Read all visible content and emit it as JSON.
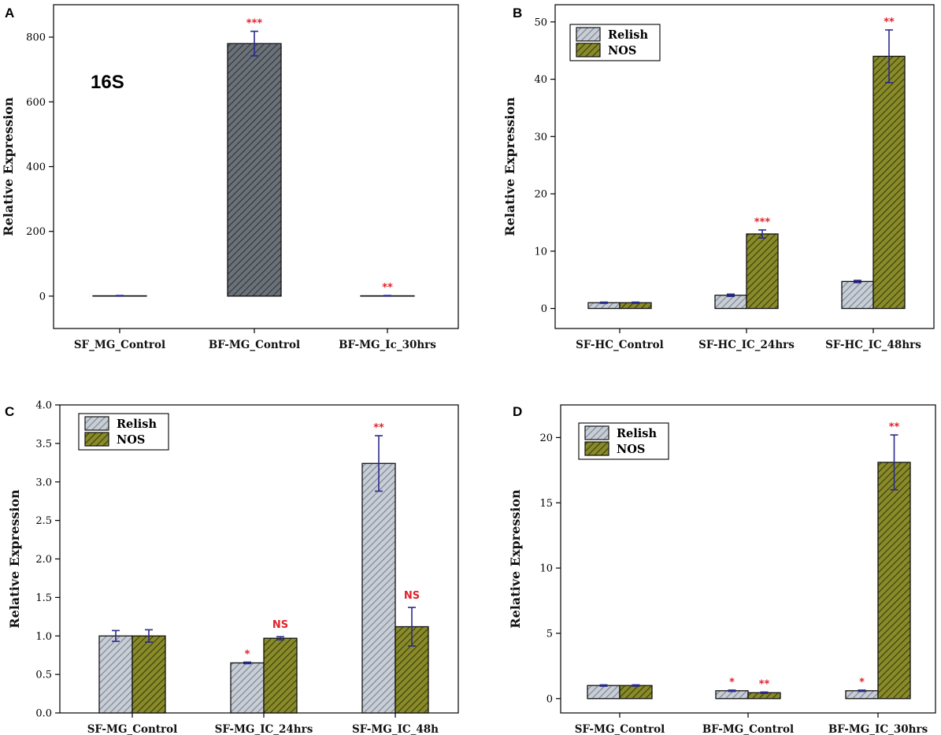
{
  "colors": {
    "relish": "#c9ced6",
    "relish_hatch": "#7d8794",
    "nos": "#898b2a",
    "nos_hatch": "#3f410a",
    "single": "#6b7178",
    "single_hatch": "#2f3338",
    "error_bar": "#2a2a8c",
    "significance": "#e0232c"
  },
  "chart_data": [
    {
      "panel": "A",
      "type": "bar",
      "title": "",
      "annotation": "16S",
      "ylabel": "Relative Expression",
      "xlabel": "",
      "ylim": [
        -100,
        900
      ],
      "yticks": [
        0,
        200,
        400,
        600,
        800
      ],
      "ytick_labels": [
        "0",
        "200",
        "400",
        "600",
        "800"
      ],
      "legend": "none",
      "categories": [
        "SF_MG_Control",
        "BF-MG_Control",
        "BF-MG_Ic_30hrs"
      ],
      "series": [
        {
          "name": "16S",
          "style": "single",
          "values": [
            1,
            780,
            1
          ],
          "errors": [
            1,
            38,
            1
          ],
          "significance": [
            "",
            "***",
            "**"
          ]
        }
      ]
    },
    {
      "panel": "B",
      "type": "bar",
      "title": "",
      "ylabel": "Relative Expression",
      "xlabel": "",
      "ylim": [
        -3.5,
        53
      ],
      "yticks": [
        0,
        10,
        20,
        30,
        40,
        50
      ],
      "ytick_labels": [
        "0",
        "10",
        "20",
        "30",
        "40",
        "50"
      ],
      "legend": "top-left",
      "categories": [
        "SF-HC_Control",
        "SF-HC_IC_24hrs",
        "SF-HC_IC_48hrs"
      ],
      "series": [
        {
          "name": "Relish",
          "style": "relish",
          "values": [
            1,
            2.3,
            4.7
          ],
          "errors": [
            0.1,
            0.2,
            0.2
          ],
          "significance": [
            "",
            "",
            ""
          ]
        },
        {
          "name": "NOS",
          "style": "nos",
          "values": [
            1,
            13,
            44
          ],
          "errors": [
            0.1,
            0.7,
            4.6
          ],
          "significance": [
            "",
            "***",
            "**"
          ]
        }
      ]
    },
    {
      "panel": "C",
      "type": "bar",
      "title": "",
      "ylabel": "Relative Expression",
      "xlabel": "",
      "ylim": [
        0,
        4.0
      ],
      "yticks": [
        0,
        0.5,
        1,
        1.5,
        2,
        2.5,
        3,
        3.5,
        4
      ],
      "ytick_labels": [
        "0.0",
        "0.5",
        "1.0",
        "1.5",
        "2.0",
        "2.5",
        "3.0",
        "3.5",
        "4.0"
      ],
      "legend": "top-left",
      "categories": [
        "SF-MG_Control",
        "SF-MG_IC_24hrs",
        "SF-MG_IC_48h"
      ],
      "series": [
        {
          "name": "Relish",
          "style": "relish",
          "values": [
            1.0,
            0.65,
            3.24
          ],
          "errors": [
            0.07,
            0.01,
            0.36
          ],
          "significance": [
            "",
            "*",
            "**"
          ]
        },
        {
          "name": "NOS",
          "style": "nos",
          "values": [
            1.0,
            0.97,
            1.12
          ],
          "errors": [
            0.08,
            0.02,
            0.25
          ],
          "significance": [
            "",
            "NS",
            "NS"
          ]
        }
      ]
    },
    {
      "panel": "D",
      "type": "bar",
      "title": "",
      "ylabel": "Relative Expression",
      "xlabel": "",
      "ylim": [
        -1.1,
        22.5
      ],
      "yticks": [
        0,
        5,
        10,
        15,
        20
      ],
      "ytick_labels": [
        "0",
        "5",
        "10",
        "15",
        "20"
      ],
      "legend": "top-left",
      "categories": [
        "SF-MG_Control",
        "BF-MG_Control",
        "BF-MG_IC_30hrs"
      ],
      "series": [
        {
          "name": "Relish",
          "style": "relish",
          "values": [
            1.0,
            0.6,
            0.6
          ],
          "errors": [
            0.05,
            0.05,
            0.05
          ],
          "significance": [
            "",
            "*",
            "*"
          ]
        },
        {
          "name": "NOS",
          "style": "nos",
          "values": [
            1.0,
            0.45,
            18.1
          ],
          "errors": [
            0.05,
            0.05,
            2.1
          ],
          "significance": [
            "",
            "**",
            "**"
          ]
        }
      ]
    }
  ]
}
